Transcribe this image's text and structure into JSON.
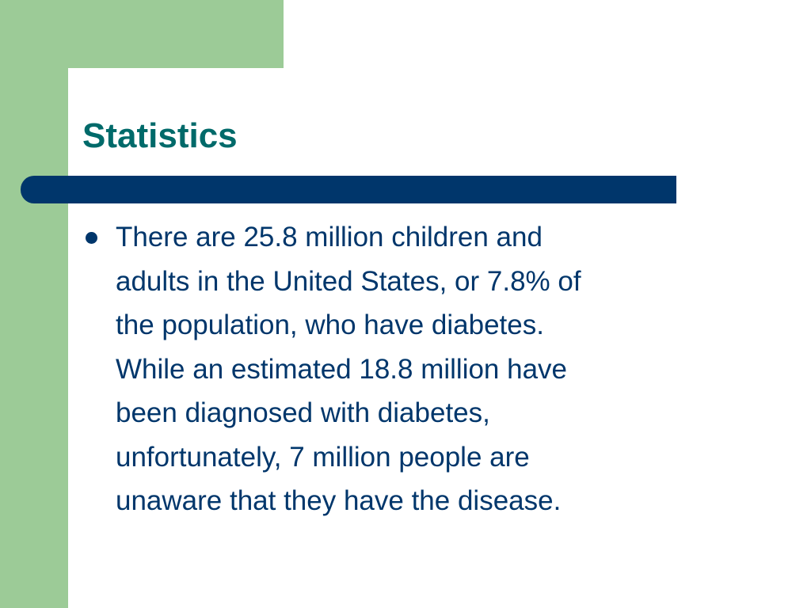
{
  "slide": {
    "title": "Statistics",
    "bullets": [
      {
        "lines": [
          "There are 25.8 million children and",
          "adults in the United States, or 7.8% of",
          "the population, who have diabetes.",
          "While an estimated 18.8 million have",
          "been diagnosed with diabetes,",
          "unfortunately, 7 million people are",
          "unaware that they have the disease."
        ]
      }
    ]
  },
  "colors": {
    "green_accent": "#9ccb97",
    "navy_bar": "#00366b",
    "title_teal": "#006a6a",
    "body_text": "#00366b",
    "background": "#ffffff"
  }
}
